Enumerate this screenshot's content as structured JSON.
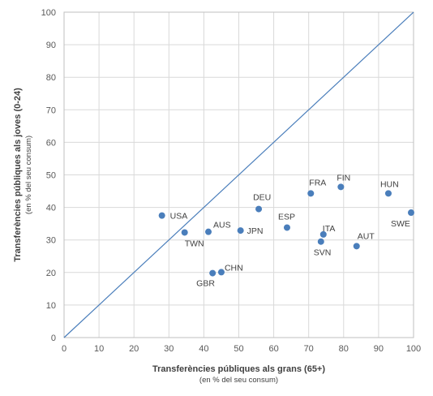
{
  "chart_data": {
    "type": "scatter",
    "title": "",
    "xlabel": "Transferències públiques als grans (65+)",
    "xlabel_sub": "(en % del seu consum)",
    "ylabel": "Transferències públiques als joves (0-24)",
    "ylabel_sub": "(en % del seu consum)",
    "xlim": [
      0,
      100
    ],
    "ylim": [
      0,
      100
    ],
    "xticks": [
      "0",
      "10",
      "20",
      "30",
      "40",
      "50",
      "60",
      "70",
      "80",
      "90",
      "100"
    ],
    "yticks": [
      "0",
      "10",
      "20",
      "30",
      "40",
      "50",
      "60",
      "70",
      "80",
      "90",
      "100"
    ],
    "grid": true,
    "legend": "none",
    "reference_line": {
      "type": "diagonal",
      "from": [
        0,
        0
      ],
      "to": [
        100,
        100
      ]
    },
    "point_color": "#4a7ebb",
    "line_color": "#4a7ebb",
    "points": [
      {
        "label": "USA",
        "x": 28,
        "y": 37.5
      },
      {
        "label": "TWN",
        "x": 34.5,
        "y": 32.3
      },
      {
        "label": "AUS",
        "x": 41.3,
        "y": 32.5
      },
      {
        "label": "GBR",
        "x": 42.5,
        "y": 19.8
      },
      {
        "label": "CHN",
        "x": 45,
        "y": 20.1
      },
      {
        "label": "JPN",
        "x": 50.5,
        "y": 32.9
      },
      {
        "label": "DEU",
        "x": 55.7,
        "y": 39.5
      },
      {
        "label": "ESP",
        "x": 63.8,
        "y": 33.8
      },
      {
        "label": "FRA",
        "x": 70.6,
        "y": 44.3
      },
      {
        "label": "SVN",
        "x": 73.5,
        "y": 29.5
      },
      {
        "label": "ITA",
        "x": 74.2,
        "y": 31.7
      },
      {
        "label": "FIN",
        "x": 79.2,
        "y": 46.3
      },
      {
        "label": "AUT",
        "x": 83.7,
        "y": 28.1
      },
      {
        "label": "HUN",
        "x": 92.8,
        "y": 44.3
      },
      {
        "label": "SWE",
        "x": 99.3,
        "y": 38.4
      }
    ]
  }
}
